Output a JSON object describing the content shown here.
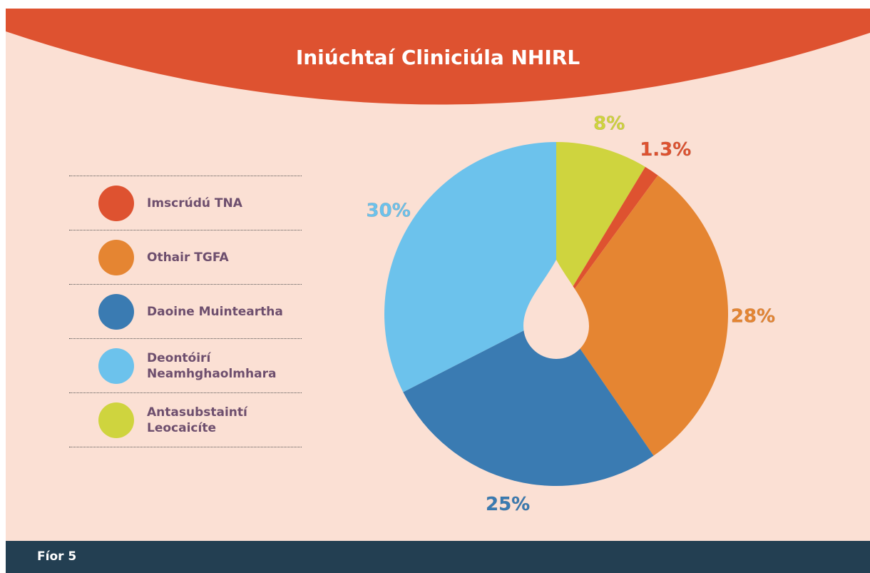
{
  "chart_data": {
    "type": "pie",
    "title": "Iniúchtaí Cliniciúla NHIRL",
    "categories": [
      "Imscrúdú TNA",
      "Othair TGFA",
      "Daoine Muinteartha",
      "Deontóirí Neamhghaolmhara",
      "Antasubstaintí Leocaicíte"
    ],
    "values": [
      1.3,
      28,
      25,
      30,
      8
    ],
    "value_labels": [
      "1.3%",
      "28%",
      "25%",
      "30%",
      "8%"
    ],
    "colors": [
      "#de5230",
      "#e58532",
      "#3a7bb2",
      "#6cc2ec",
      "#cfd43e"
    ]
  },
  "figure_label": "Fíor 5"
}
